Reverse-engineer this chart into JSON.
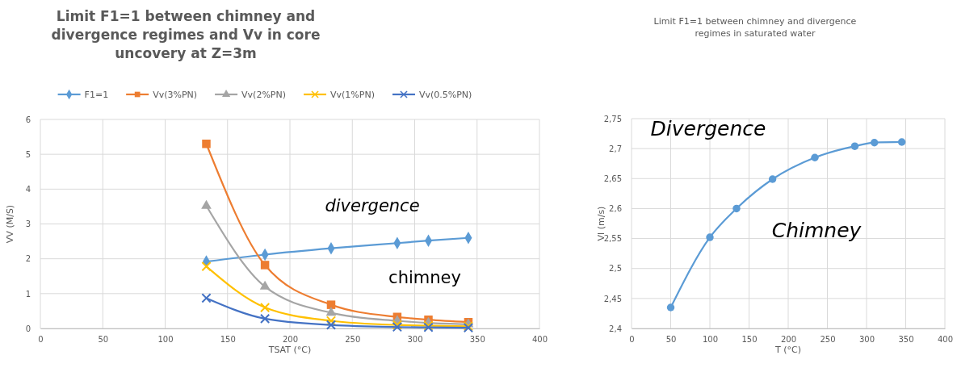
{
  "chart_data": [
    {
      "type": "line",
      "title": "Limit F1=1 between chimney and divergence regimes and Vv in core uncovery at Z=3m",
      "xlabel": "TSAT (°C)",
      "ylabel": "VV (M/S)",
      "x": [
        133,
        180,
        233,
        286,
        311,
        343
      ],
      "series": [
        {
          "name": "F1=1",
          "color": "#5b9bd5",
          "marker": "diamond",
          "values": [
            1.92,
            2.12,
            2.3,
            2.45,
            2.52,
            2.6
          ]
        },
        {
          "name": "Vv(3%PN)",
          "color": "#ed7d31",
          "marker": "square",
          "values": [
            5.3,
            1.82,
            0.68,
            0.33,
            0.25,
            0.18
          ]
        },
        {
          "name": "Vv(2%PN)",
          "color": "#a5a5a5",
          "marker": "triangle",
          "values": [
            3.52,
            1.2,
            0.45,
            0.22,
            0.16,
            0.12
          ]
        },
        {
          "name": "Vv(1%PN)",
          "color": "#ffc000",
          "marker": "cross",
          "values": [
            1.78,
            0.6,
            0.22,
            0.1,
            0.08,
            0.06
          ]
        },
        {
          "name": "Vv(0.5%PN)",
          "color": "#4472c4",
          "marker": "cross",
          "values": [
            0.87,
            0.28,
            0.1,
            0.04,
            0.03,
            0.02
          ]
        }
      ],
      "xlim": [
        0,
        400
      ],
      "xticks": [
        0,
        50,
        100,
        150,
        200,
        250,
        300,
        350,
        400
      ],
      "ylim": [
        0,
        6
      ],
      "yticks": [
        0,
        1,
        2,
        3,
        4,
        5,
        6
      ],
      "grid": true,
      "legend": "top",
      "line_style": "solid",
      "annotations": [
        "divergence",
        "chimney"
      ]
    },
    {
      "type": "line",
      "title": "Limit F1=1 between chimney and divergence regimes in saturated water",
      "xlabel": "T (°C)",
      "ylabel": "Vl (m/s)",
      "x": [
        50,
        100,
        134,
        180,
        234,
        285,
        310,
        345
      ],
      "series": [
        {
          "color": "#5b9bd5",
          "marker": "circle",
          "values": [
            2.435,
            2.552,
            2.6,
            2.649,
            2.685,
            2.704,
            2.71,
            2.711
          ]
        }
      ],
      "xlim": [
        0,
        400
      ],
      "xticks": [
        0,
        50,
        100,
        150,
        200,
        250,
        300,
        350,
        400
      ],
      "ylim": [
        2.4,
        2.75
      ],
      "yticks": [
        {
          "value": 2.4,
          "label": "2,4"
        },
        {
          "value": 2.45,
          "label": "2,45"
        },
        {
          "value": 2.5,
          "label": "2,5"
        },
        {
          "value": 2.55,
          "label": "2,55"
        },
        {
          "value": 2.6,
          "label": "2,6"
        },
        {
          "value": 2.65,
          "label": "2,65"
        },
        {
          "value": 2.7,
          "label": "2,7"
        },
        {
          "value": 2.75,
          "label": "2,75"
        }
      ],
      "grid": true,
      "legend": false,
      "line_style": "solid",
      "annotations": [
        "Divergence",
        "Chimney"
      ]
    }
  ]
}
